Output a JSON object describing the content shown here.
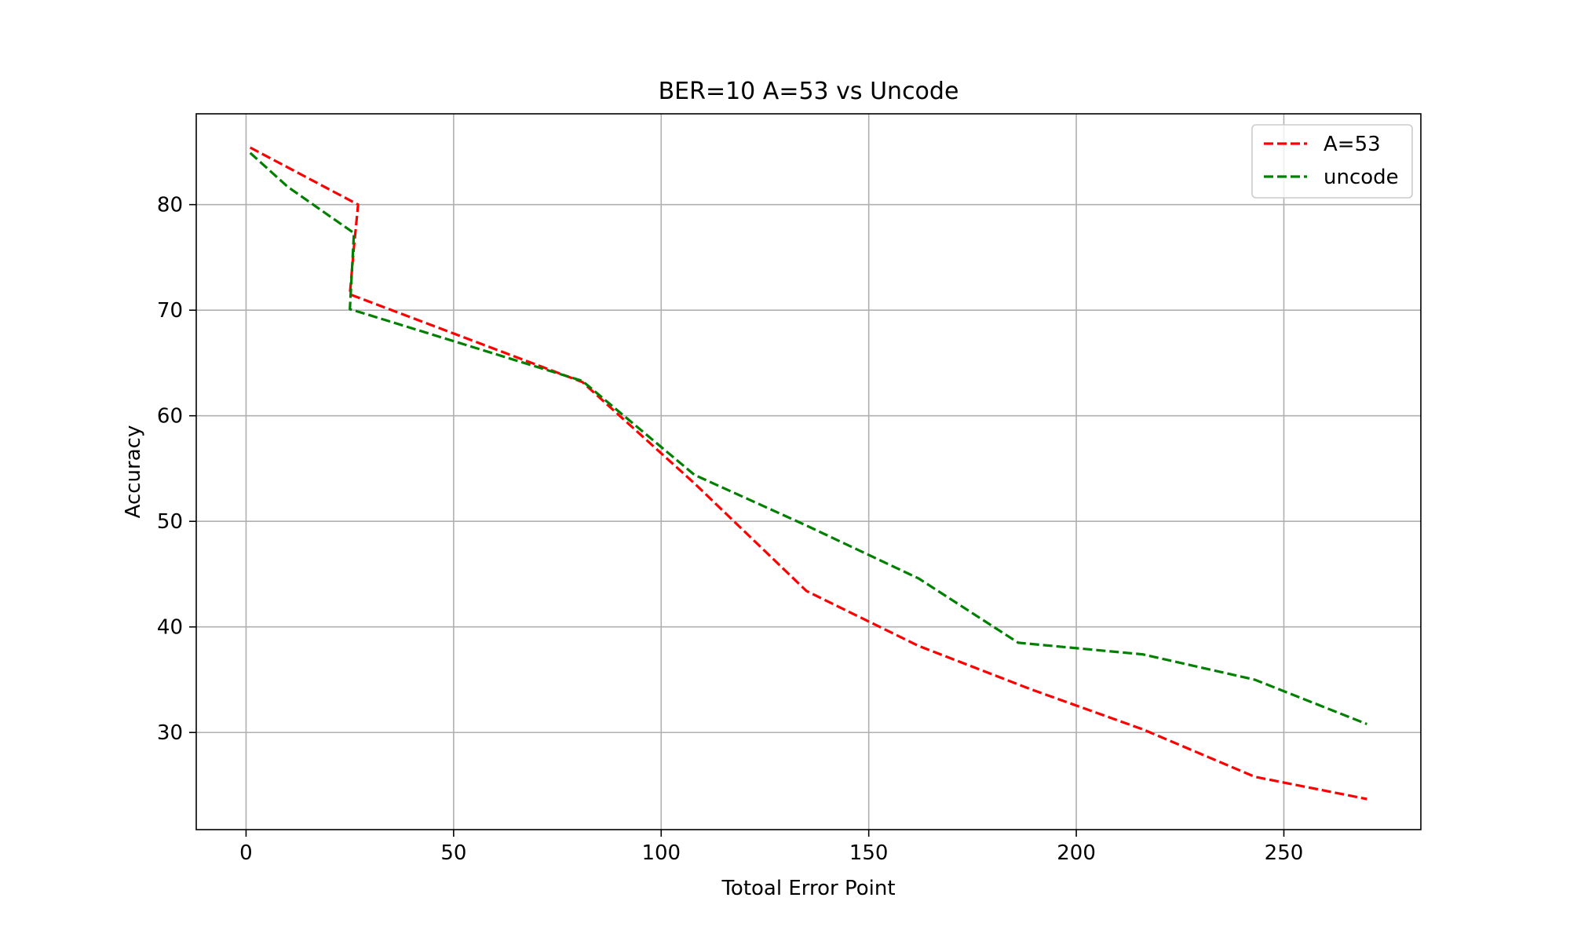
{
  "chart_data": {
    "type": "line",
    "title": "BER=10 A=53 vs Uncode",
    "xlabel": "Totoal Error Point",
    "ylabel": "Accuracy",
    "xlim": [
      -12,
      283
    ],
    "ylim": [
      20.8,
      88.6
    ],
    "xticks": [
      0,
      50,
      100,
      150,
      200,
      250
    ],
    "yticks": [
      30,
      40,
      50,
      60,
      70,
      80
    ],
    "grid": true,
    "legend": "top-right",
    "series": [
      {
        "name": "A=53",
        "color": "#ff0000",
        "linestyle": "dashed",
        "x": [
          1,
          27,
          26,
          25,
          81,
          108,
          135,
          162,
          189,
          216,
          243,
          270
        ],
        "y": [
          85.4,
          80.0,
          76.0,
          71.5,
          63.2,
          53.6,
          43.4,
          38.2,
          34.1,
          30.3,
          25.8,
          23.7
        ]
      },
      {
        "name": "uncode",
        "color": "#008000",
        "linestyle": "dashed",
        "x": [
          1,
          10,
          26,
          25,
          81,
          108,
          135,
          162,
          186,
          216,
          243,
          270
        ],
        "y": [
          84.9,
          81.7,
          77.3,
          70.1,
          63.3,
          54.4,
          49.6,
          44.6,
          38.5,
          37.4,
          35.0,
          30.8
        ]
      }
    ]
  }
}
